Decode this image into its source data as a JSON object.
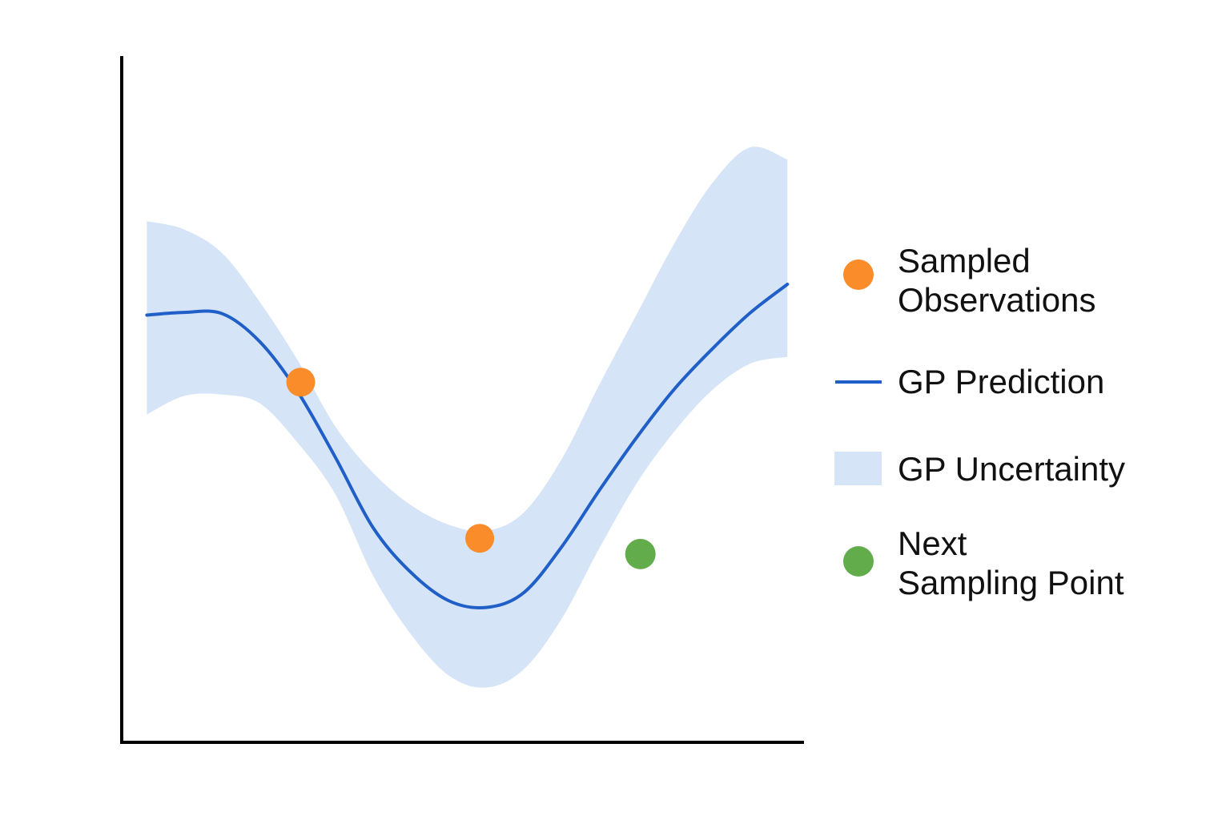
{
  "chart_data": {
    "type": "line",
    "title": "",
    "xlabel": "",
    "ylabel": "",
    "xlim": [
      0,
      10
    ],
    "ylim": [
      0,
      10
    ],
    "grid": false,
    "legend_placement": "right",
    "colors": {
      "prediction": "#1f5fc7",
      "uncertainty": "#d6e4f8",
      "observations": "#fa8c2a",
      "next_point": "#62ac4c",
      "axis": "#000000"
    },
    "series": [
      {
        "name": "GP Prediction",
        "kind": "line",
        "x": [
          0.37,
          0.92,
          1.48,
          2.03,
          2.58,
          3.14,
          3.69,
          4.24,
          4.8,
          5.35,
          5.9,
          6.46,
          7.01,
          7.57,
          8.12,
          8.67,
          9.23,
          9.78
        ],
        "y": [
          6.24,
          6.28,
          6.26,
          5.85,
          5.13,
          4.16,
          3.14,
          2.49,
          2.07,
          1.97,
          2.18,
          2.85,
          3.67,
          4.46,
          5.16,
          5.74,
          6.27,
          6.69
        ]
      },
      {
        "name": "GP Uncertainty",
        "kind": "band",
        "x": [
          0.37,
          0.92,
          1.48,
          2.03,
          2.58,
          3.14,
          3.69,
          4.24,
          4.8,
          5.35,
          5.9,
          6.46,
          7.01,
          7.57,
          8.12,
          8.67,
          9.23,
          9.78
        ],
        "upper": [
          7.61,
          7.49,
          7.14,
          6.43,
          5.59,
          4.61,
          3.94,
          3.47,
          3.18,
          3.09,
          3.35,
          4.13,
          5.21,
          6.26,
          7.29,
          8.16,
          8.69,
          8.51
        ],
        "lower": [
          4.79,
          5.06,
          5.08,
          4.95,
          4.38,
          3.62,
          2.44,
          1.59,
          0.98,
          0.8,
          1.06,
          1.8,
          2.82,
          3.79,
          4.54,
          5.14,
          5.53,
          5.63
        ]
      },
      {
        "name": "Sampled Observations",
        "kind": "points",
        "x": [
          2.63,
          5.26
        ],
        "y": [
          5.26,
          2.98
        ]
      },
      {
        "name": "Next Sampling Point",
        "kind": "points",
        "x": [
          7.62
        ],
        "y": [
          2.75
        ]
      }
    ],
    "legend": [
      {
        "key": "observations",
        "lines": [
          "Sampled",
          "Observations"
        ]
      },
      {
        "key": "prediction",
        "lines": [
          "GP Prediction"
        ]
      },
      {
        "key": "uncertainty",
        "lines": [
          "GP Uncertainty"
        ]
      },
      {
        "key": "next_point",
        "lines": [
          "Next",
          "Sampling Point"
        ]
      }
    ]
  }
}
